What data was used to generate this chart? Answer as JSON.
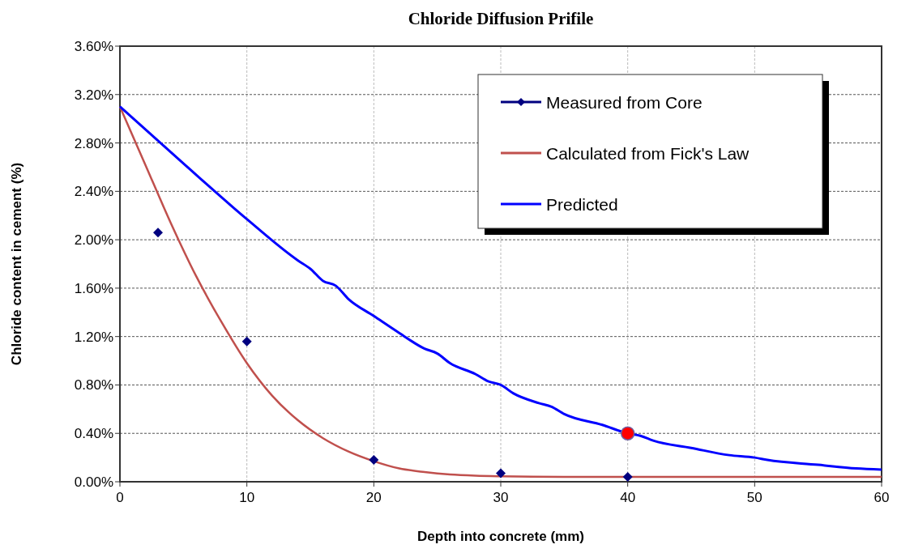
{
  "chart_data": {
    "type": "line",
    "title": "Chloride Diffusion Prifile",
    "xlabel": "Depth into concrete (mm)",
    "ylabel": "Chloride content in cement (%)",
    "xlim": [
      0,
      60
    ],
    "xticks": [
      0,
      10,
      20,
      30,
      40,
      50,
      60
    ],
    "ylim": [
      0,
      3.6
    ],
    "yticks": [
      {
        "value": 0,
        "label": "0.00%"
      },
      {
        "value": 0.4,
        "label": "0.40%"
      },
      {
        "value": 0.8,
        "label": "0.80%"
      },
      {
        "value": 1.2,
        "label": "1.20%"
      },
      {
        "value": 1.6,
        "label": "1.60%"
      },
      {
        "value": 2.0,
        "label": "2.00%"
      },
      {
        "value": 2.4,
        "label": "2.40%"
      },
      {
        "value": 2.8,
        "label": "2.80%"
      },
      {
        "value": 3.2,
        "label": "3.20%"
      },
      {
        "value": 3.6,
        "label": "3.60%"
      }
    ],
    "grid": true,
    "legend": "top right",
    "line_style": "solid",
    "series": [
      {
        "name": "Measured from Core",
        "type": "scatter",
        "marker": "diamond",
        "color": "#000080",
        "x": [
          3,
          10,
          20,
          30,
          40
        ],
        "values": [
          2.06,
          1.16,
          0.18,
          0.07,
          0.04
        ]
      },
      {
        "name": "Calculated from Fick's Law",
        "marker": "none",
        "color": "#c0504d",
        "x": [
          0,
          2,
          4,
          6,
          8,
          10,
          12,
          14,
          16,
          18,
          20,
          22,
          24,
          26,
          28,
          30,
          35,
          40,
          50,
          60
        ],
        "values": [
          3.1,
          2.62,
          2.14,
          1.7,
          1.32,
          0.98,
          0.71,
          0.51,
          0.36,
          0.25,
          0.17,
          0.11,
          0.08,
          0.06,
          0.05,
          0.045,
          0.04,
          0.04,
          0.04,
          0.04
        ]
      },
      {
        "name": "Predicted",
        "marker": "none",
        "color": "#0000ff",
        "x": [
          0,
          5,
          10,
          14,
          15,
          16,
          17,
          18,
          20,
          22,
          24,
          25,
          26,
          28,
          29,
          30,
          31,
          33,
          34,
          35,
          38,
          40,
          41,
          42,
          45,
          48,
          50,
          51,
          55,
          58,
          60
        ],
        "values": [
          3.1,
          2.63,
          2.17,
          1.83,
          1.76,
          1.66,
          1.62,
          1.51,
          1.37,
          1.23,
          1.1,
          1.06,
          0.98,
          0.89,
          0.83,
          0.8,
          0.73,
          0.65,
          0.62,
          0.56,
          0.47,
          0.4,
          0.38,
          0.34,
          0.28,
          0.22,
          0.2,
          0.18,
          0.14,
          0.11,
          0.1
        ]
      },
      {
        "type": "scatter",
        "marker": "circle",
        "color": "#ff0000",
        "x": [
          40
        ],
        "values": [
          0.4
        ]
      }
    ]
  }
}
